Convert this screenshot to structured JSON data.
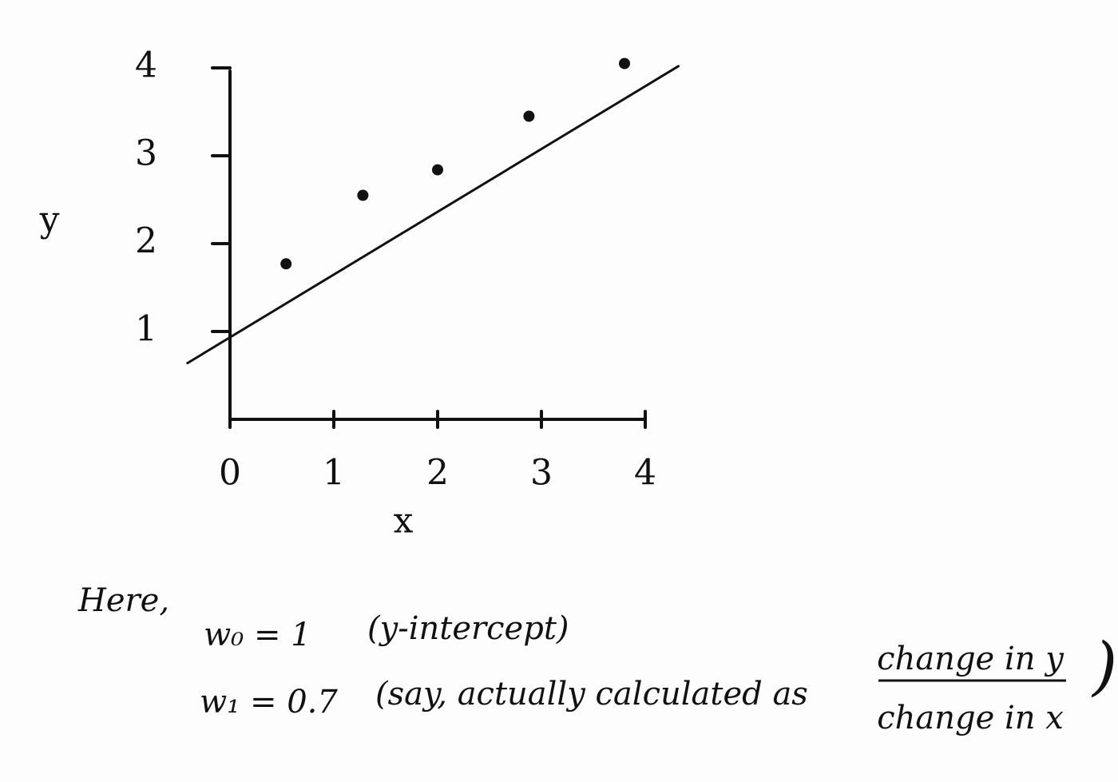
{
  "chart_data": {
    "type": "scatter",
    "x_label": "x",
    "y_label": "y",
    "xlim": [
      -0.5,
      4.5
    ],
    "ylim": [
      0,
      4.1
    ],
    "xticks": [
      0,
      1,
      2,
      3,
      4
    ],
    "yticks": [
      1,
      2,
      3,
      4
    ],
    "color": "#111111",
    "series": [
      {
        "x": [
          0.54,
          1.28,
          2.0,
          2.88,
          3.8
        ],
        "values": [
          1.77,
          2.55,
          2.84,
          3.45,
          4.05
        ]
      }
    ],
    "fit_line": {
      "x": [
        -0.41,
        4.32
      ],
      "values": [
        0.64,
        4.02
      ]
    },
    "annotations": {
      "here": "Here,",
      "w0": "w₀ = 1",
      "w0_note": "(y-intercept)",
      "w1": "w₁ = 0.7",
      "w1_note": "(say, actually calculated as",
      "numerator": "change in y",
      "denominator": "change in x",
      "close": ")"
    }
  }
}
